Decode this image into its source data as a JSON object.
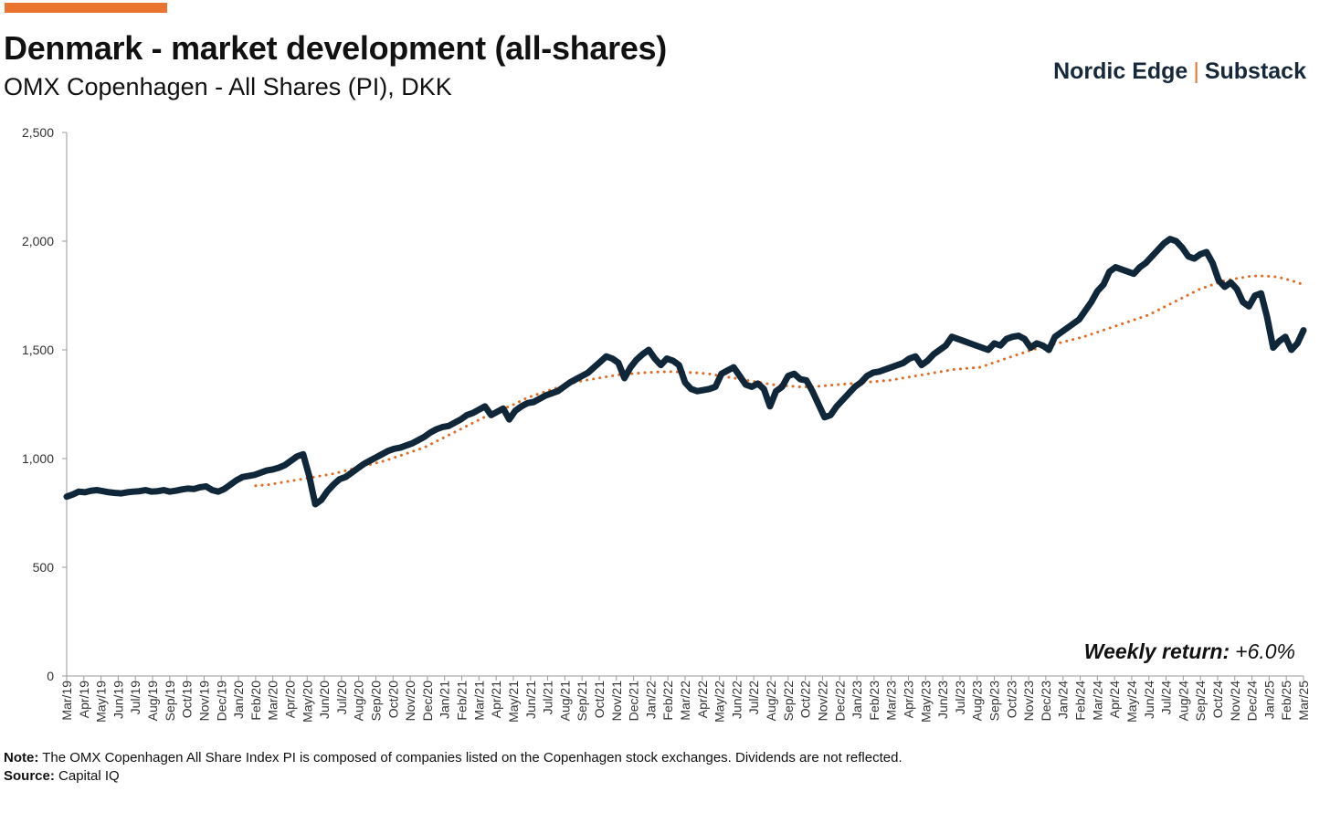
{
  "header": {
    "title": "Denmark - market development (all-shares)",
    "subtitle": "OMX Copenhagen - All Shares (PI), DKK",
    "brand_left": "Nordic Edge",
    "brand_separator": "|",
    "brand_right": "Substack"
  },
  "colors": {
    "accent": "#E8742F",
    "index_line": "#10273A",
    "moving_average": "#E36A24",
    "axis": "#9a9a9a"
  },
  "annotation": {
    "label": "Weekly return:",
    "value": "+6.0%"
  },
  "footer": {
    "note_label": "Note:",
    "note_text": " The OMX Copenhagen All Share Index PI is composed of companies listed on the Copenhagen stock exchanges. Dividends are not reflected.",
    "source_label": "Source:",
    "source_text": " Capital IQ"
  },
  "chart_data": {
    "type": "line",
    "title": "Denmark - market development (all-shares)",
    "subtitle": "OMX Copenhagen - All Shares (PI), DKK",
    "ylim": [
      0,
      2500
    ],
    "yticks": [
      0,
      500,
      1000,
      1500,
      2000,
      2500
    ],
    "ytick_labels": [
      "0",
      "500",
      "1,000",
      "1,500",
      "2,000",
      "2,500"
    ],
    "x_tick_labels": [
      "Mar/19",
      "Apr/19",
      "May/19",
      "Jun/19",
      "Jul/19",
      "Aug/19",
      "Sep/19",
      "Oct/19",
      "Nov/19",
      "Dec/19",
      "Jan/20",
      "Feb/20",
      "Mar/20",
      "Apr/20",
      "May/20",
      "Jun/20",
      "Jul/20",
      "Aug/20",
      "Sep/20",
      "Oct/20",
      "Nov/20",
      "Dec/20",
      "Jan/21",
      "Feb/21",
      "Mar/21",
      "Apr/21",
      "May/21",
      "Jun/21",
      "Jul/21",
      "Aug/21",
      "Sep/21",
      "Oct/21",
      "Nov/21",
      "Dec/21",
      "Jan/22",
      "Feb/22",
      "Mar/22",
      "Apr/22",
      "May/22",
      "Jun/22",
      "Jul/22",
      "Aug/22",
      "Sep/22",
      "Oct/22",
      "Nov/22",
      "Dec/22",
      "Jan/23",
      "Feb/23",
      "Mar/23",
      "Apr/23",
      "May/23",
      "Jun/23",
      "Jul/23",
      "Aug/23",
      "Sep/23",
      "Oct/23",
      "Nov/23",
      "Dec/23",
      "Jan/24",
      "Feb/24",
      "Mar/24",
      "Apr/24",
      "May/24",
      "Jun/24",
      "Jul/24",
      "Aug/24",
      "Sep/24",
      "Oct/24",
      "Nov/24",
      "Dec/24",
      "Jan/25",
      "Feb/25",
      "Mar/25"
    ],
    "grid": false,
    "legend": "none",
    "series": [
      {
        "style": "solid",
        "x_start": "Mar/19",
        "x_end": "Mar/25",
        "values": [
          825,
          835,
          848,
          845,
          852,
          855,
          850,
          845,
          842,
          840,
          845,
          848,
          850,
          855,
          848,
          850,
          855,
          848,
          852,
          858,
          862,
          860,
          868,
          872,
          855,
          848,
          860,
          880,
          900,
          915,
          920,
          925,
          935,
          945,
          950,
          958,
          970,
          990,
          1010,
          1020,
          920,
          790,
          810,
          850,
          880,
          905,
          915,
          935,
          955,
          975,
          990,
          1005,
          1020,
          1035,
          1045,
          1050,
          1060,
          1070,
          1085,
          1100,
          1120,
          1135,
          1145,
          1150,
          1165,
          1180,
          1200,
          1210,
          1225,
          1240,
          1200,
          1215,
          1230,
          1180,
          1220,
          1240,
          1255,
          1260,
          1275,
          1290,
          1300,
          1310,
          1330,
          1350,
          1365,
          1380,
          1395,
          1420,
          1445,
          1470,
          1460,
          1440,
          1370,
          1420,
          1455,
          1480,
          1500,
          1460,
          1430,
          1460,
          1450,
          1430,
          1350,
          1320,
          1310,
          1315,
          1320,
          1330,
          1390,
          1405,
          1420,
          1380,
          1340,
          1330,
          1345,
          1320,
          1240,
          1310,
          1330,
          1380,
          1390,
          1365,
          1360,
          1310,
          1250,
          1190,
          1200,
          1240,
          1270,
          1300,
          1330,
          1350,
          1380,
          1395,
          1400,
          1410,
          1420,
          1430,
          1440,
          1460,
          1470,
          1430,
          1450,
          1480,
          1500,
          1520,
          1560,
          1550,
          1540,
          1530,
          1520,
          1510,
          1500,
          1530,
          1520,
          1550,
          1560,
          1565,
          1550,
          1510,
          1530,
          1520,
          1500,
          1560,
          1580,
          1600,
          1620,
          1640,
          1680,
          1720,
          1770,
          1800,
          1860,
          1880,
          1870,
          1860,
          1850,
          1880,
          1900,
          1930,
          1960,
          1990,
          2010,
          2000,
          1970,
          1930,
          1920,
          1940,
          1950,
          1900,
          1820,
          1790,
          1810,
          1780,
          1720,
          1700,
          1750,
          1760,
          1650,
          1510,
          1540,
          1560,
          1500,
          1530,
          1590
        ],
        "smoothing_note": ""
      },
      {
        "style": "dotted",
        "x_start": "Feb/20",
        "x_end": "Mar/25",
        "values": [
          875,
          880,
          890,
          900,
          910,
          920,
          930,
          945,
          960,
          975,
          990,
          1010,
          1030,
          1050,
          1080,
          1110,
          1140,
          1170,
          1200,
          1225,
          1250,
          1280,
          1300,
          1320,
          1340,
          1355,
          1365,
          1375,
          1385,
          1390,
          1395,
          1398,
          1400,
          1398,
          1395,
          1390,
          1380,
          1370,
          1360,
          1350,
          1340,
          1335,
          1330,
          1330,
          1335,
          1340,
          1345,
          1350,
          1355,
          1360,
          1370,
          1380,
          1390,
          1400,
          1410,
          1415,
          1420,
          1440,
          1460,
          1480,
          1500,
          1515,
          1530,
          1545,
          1560,
          1580,
          1600,
          1620,
          1640,
          1660,
          1690,
          1720,
          1750,
          1780,
          1800,
          1820,
          1830,
          1840,
          1840,
          1835,
          1820,
          1800
        ]
      }
    ]
  }
}
